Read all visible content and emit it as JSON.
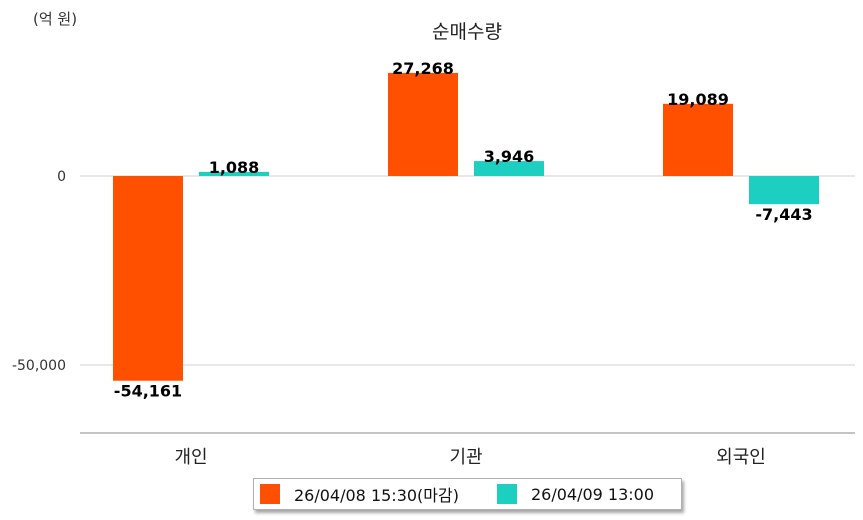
{
  "chart_data": {
    "type": "bar",
    "title": "순매수량",
    "unit_label": "(억 원)",
    "categories": [
      "개인",
      "기관",
      "외국인"
    ],
    "series": [
      {
        "name": "26/04/08 15:30(마감)",
        "color": "#ff5000",
        "values": [
          -54161,
          27268,
          19089
        ],
        "labels": [
          "-54,161",
          "27,268",
          "19,089"
        ]
      },
      {
        "name": "26/04/09 13:00",
        "color": "#1ccfc0",
        "values": [
          1088,
          3946,
          -7443
        ],
        "labels": [
          "1,088",
          "3,946",
          "-7,443"
        ]
      }
    ],
    "yticks": [
      {
        "value": 0,
        "label": "0"
      },
      {
        "value": -50000,
        "label": "-50,000"
      }
    ],
    "ylim": [
      -68000,
      38500
    ],
    "grid": true,
    "legend_position": "bottom"
  }
}
